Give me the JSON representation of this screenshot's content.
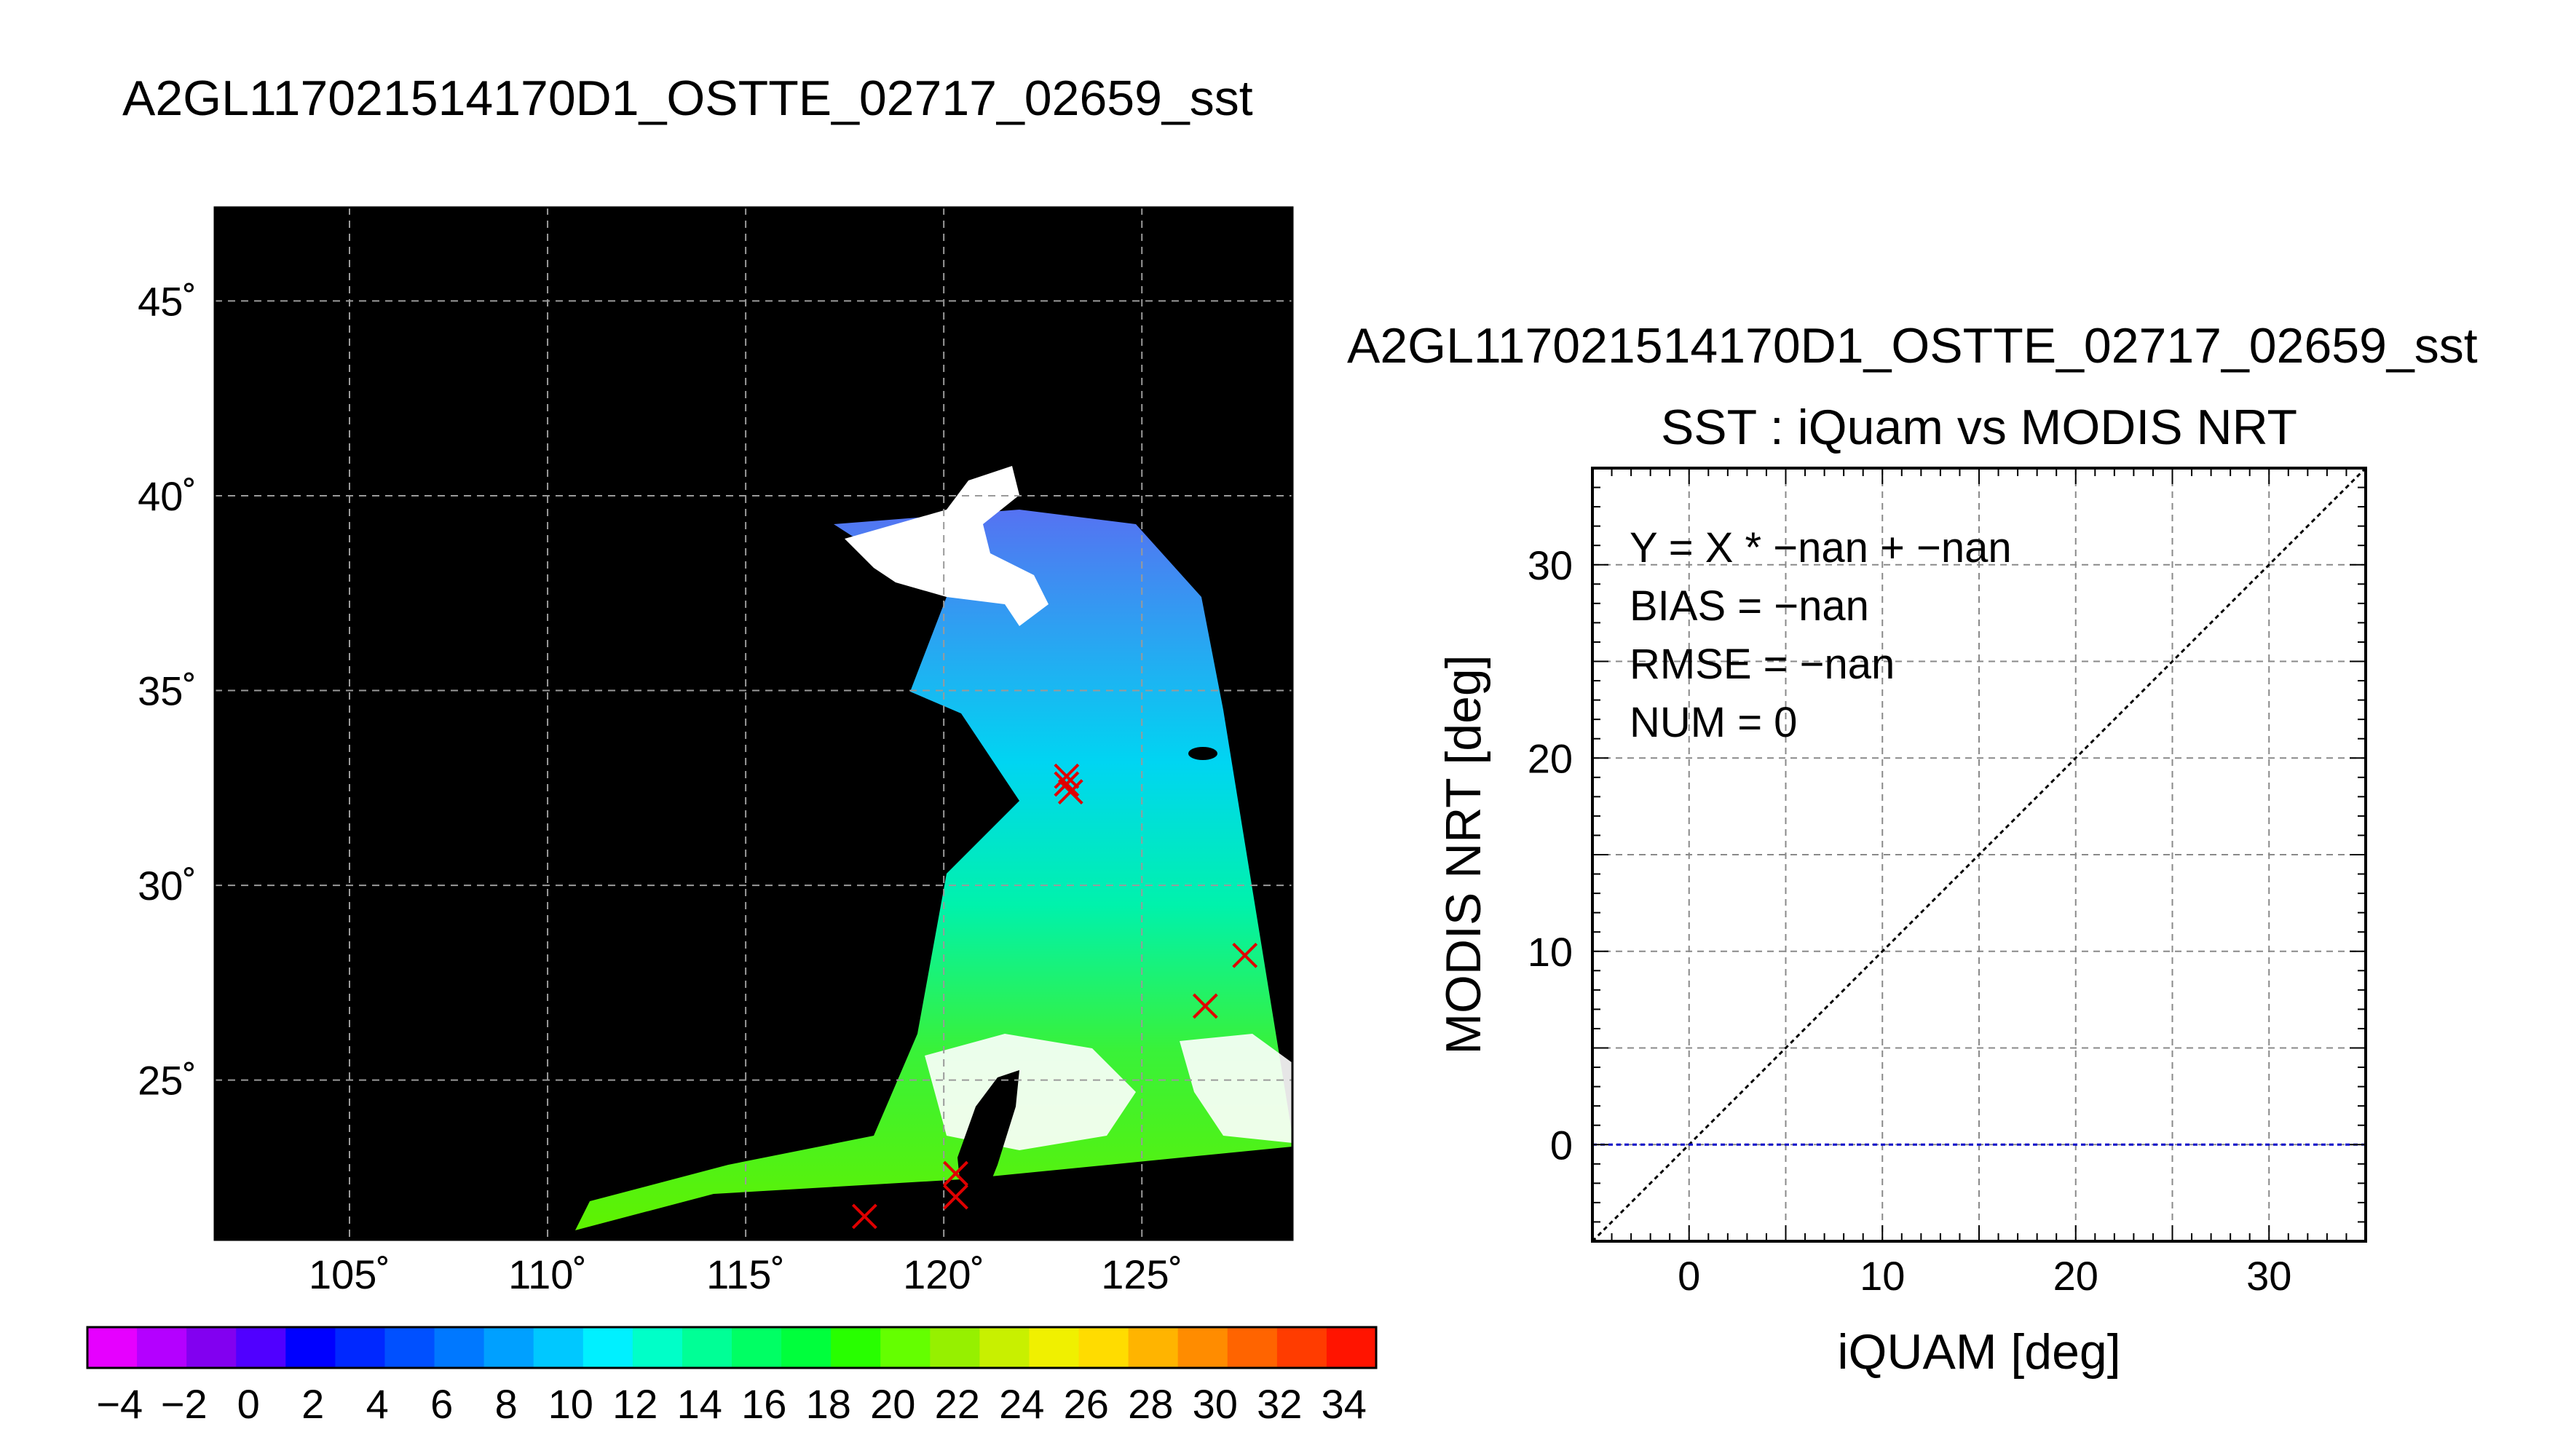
{
  "page_title": "A2GL117021514170D1_OSTTE_02717_02659_sst",
  "chart_data": [
    {
      "type": "map",
      "title": "A2GL117021514170D1_OSTTE_02717_02659_sst",
      "x_ticks": [
        "105˚",
        "110˚",
        "115˚",
        "120˚",
        "125˚"
      ],
      "x_tick_values": [
        105,
        110,
        115,
        120,
        125
      ],
      "y_ticks": [
        "45˚",
        "40˚",
        "35˚",
        "30˚",
        "25˚"
      ],
      "y_tick_values": [
        45,
        40,
        35,
        30,
        25
      ],
      "xlim": [
        101.6,
        128.8
      ],
      "ylim": [
        20.9,
        47.4
      ],
      "grid": true,
      "background_color": "#000000",
      "marker_color": "#e00000",
      "markers": [
        {
          "lon": 123.1,
          "lat": 32.8
        },
        {
          "lon": 123.1,
          "lat": 32.6
        },
        {
          "lon": 123.2,
          "lat": 32.4
        },
        {
          "lon": 127.6,
          "lat": 28.2
        },
        {
          "lon": 126.6,
          "lat": 26.9
        },
        {
          "lon": 120.3,
          "lat": 22.6
        },
        {
          "lon": 120.3,
          "lat": 22.0
        },
        {
          "lon": 118.0,
          "lat": 21.5
        }
      ],
      "colorbar": {
        "ticks": [
          "−4",
          "−2",
          "0",
          "2",
          "4",
          "6",
          "8",
          "10",
          "12",
          "14",
          "16",
          "18",
          "20",
          "22",
          "24",
          "26",
          "28",
          "30",
          "32",
          "34"
        ],
        "range": [
          -5,
          35
        ],
        "colors": [
          "#e600ff",
          "#b400ff",
          "#8200f0",
          "#5000ff",
          "#0000ff",
          "#0028ff",
          "#0050ff",
          "#0078ff",
          "#00a0ff",
          "#00c8ff",
          "#00f0ff",
          "#00ffc8",
          "#00ff96",
          "#00ff64",
          "#00ff3c",
          "#28ff00",
          "#64ff00",
          "#96f000",
          "#c8f000",
          "#f0f000",
          "#ffdc00",
          "#ffb400",
          "#ff8c00",
          "#ff6400",
          "#ff3c00",
          "#ff1400"
        ]
      }
    },
    {
      "type": "scatter",
      "title": "A2GL117021514170D1_OSTTE_02717_02659_sst",
      "subtitle": "SST : iQuam vs MODIS NRT",
      "xlabel": "iQUAM [deg]",
      "ylabel": "MODIS NRT [deg]",
      "xlim": [
        -5,
        35
      ],
      "ylim": [
        -5,
        35
      ],
      "x_ticks": [
        0,
        10,
        20,
        30
      ],
      "y_ticks": [
        0,
        10,
        20,
        30
      ],
      "grid": true,
      "annotations": [
        "Y = X * −nan + −nan",
        "BIAS = −nan",
        "RMSE = −nan",
        "NUM = 0"
      ],
      "series": [
        {
          "type": "reference-line",
          "x": [
            -5,
            35
          ],
          "y": [
            -5,
            35
          ],
          "color": "#000000"
        },
        {
          "type": "reference-line",
          "x": [
            -5,
            35
          ],
          "y": [
            0,
            0
          ],
          "color": "#0000c8"
        }
      ],
      "points": []
    }
  ]
}
